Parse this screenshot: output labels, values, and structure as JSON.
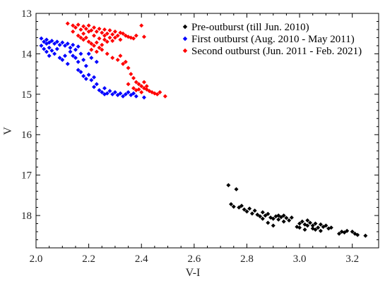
{
  "chart_data": {
    "type": "scatter",
    "title": "",
    "xlabel": "V-I",
    "ylabel": "V",
    "xlim": [
      2.0,
      3.3
    ],
    "ylim": [
      13.0,
      18.8
    ],
    "y_inverted": true,
    "x_ticks": [
      "2.0",
      "2.2",
      "2.4",
      "2.6",
      "2.8",
      "3.0",
      "3.2"
    ],
    "y_ticks": [
      "13",
      "14",
      "15",
      "16",
      "17",
      "18"
    ],
    "grid": false,
    "legend_position": "top-right",
    "series": [
      {
        "name": "Pre-outburst (till Jun. 2010)",
        "color": "#000000",
        "points": [
          [
            2.73,
            17.25
          ],
          [
            2.76,
            17.35
          ],
          [
            2.74,
            17.72
          ],
          [
            2.75,
            17.78
          ],
          [
            2.77,
            17.8
          ],
          [
            2.78,
            17.76
          ],
          [
            2.79,
            17.85
          ],
          [
            2.8,
            17.9
          ],
          [
            2.81,
            17.83
          ],
          [
            2.82,
            17.95
          ],
          [
            2.83,
            17.88
          ],
          [
            2.84,
            17.98
          ],
          [
            2.85,
            18.02
          ],
          [
            2.86,
            17.92
          ],
          [
            2.87,
            18.0
          ],
          [
            2.88,
            17.96
          ],
          [
            2.89,
            18.05
          ],
          [
            2.9,
            18.08
          ],
          [
            2.91,
            18.02
          ],
          [
            2.92,
            18.1
          ],
          [
            2.93,
            18.04
          ],
          [
            2.94,
            18.15
          ],
          [
            2.95,
            18.06
          ],
          [
            2.96,
            18.12
          ],
          [
            2.88,
            18.18
          ],
          [
            2.9,
            18.25
          ],
          [
            2.92,
            18.0
          ],
          [
            2.94,
            18.0
          ],
          [
            2.86,
            18.08
          ],
          [
            2.97,
            18.05
          ],
          [
            2.99,
            18.28
          ],
          [
            3.0,
            18.2
          ],
          [
            3.01,
            18.15
          ],
          [
            3.02,
            18.22
          ],
          [
            3.03,
            18.12
          ],
          [
            3.04,
            18.18
          ],
          [
            3.05,
            18.25
          ],
          [
            3.06,
            18.2
          ],
          [
            3.07,
            18.3
          ],
          [
            3.08,
            18.22
          ],
          [
            3.09,
            18.28
          ],
          [
            3.1,
            18.25
          ],
          [
            3.11,
            18.32
          ],
          [
            3.12,
            18.3
          ],
          [
            3.02,
            18.35
          ],
          [
            3.05,
            18.32
          ],
          [
            3.08,
            18.38
          ],
          [
            3.15,
            18.45
          ],
          [
            3.17,
            18.42
          ],
          [
            3.18,
            18.38
          ],
          [
            3.2,
            18.4
          ],
          [
            3.21,
            18.45
          ],
          [
            3.22,
            18.48
          ],
          [
            3.25,
            18.5
          ],
          [
            3.16,
            18.4
          ],
          [
            3.0,
            18.3
          ],
          [
            3.03,
            18.25
          ],
          [
            3.06,
            18.35
          ]
        ]
      },
      {
        "name": "First outburst (Aug. 2010 - May 2011)",
        "color": "#0000ff",
        "points": [
          [
            2.02,
            13.62
          ],
          [
            2.03,
            13.7
          ],
          [
            2.04,
            13.65
          ],
          [
            2.05,
            13.72
          ],
          [
            2.06,
            13.68
          ],
          [
            2.07,
            13.75
          ],
          [
            2.08,
            13.7
          ],
          [
            2.09,
            13.78
          ],
          [
            2.1,
            13.72
          ],
          [
            2.11,
            13.8
          ],
          [
            2.12,
            13.75
          ],
          [
            2.13,
            13.85
          ],
          [
            2.14,
            13.78
          ],
          [
            2.15,
            13.9
          ],
          [
            2.16,
            13.82
          ],
          [
            2.02,
            13.8
          ],
          [
            2.03,
            13.88
          ],
          [
            2.04,
            13.95
          ],
          [
            2.05,
            13.85
          ],
          [
            2.06,
            13.92
          ],
          [
            2.07,
            14.0
          ],
          [
            2.08,
            13.88
          ],
          [
            2.05,
            14.05
          ],
          [
            2.04,
            13.75
          ],
          [
            2.1,
            14.15
          ],
          [
            2.12,
            14.25
          ],
          [
            2.14,
            14.05
          ],
          [
            2.15,
            14.1
          ],
          [
            2.16,
            14.2
          ],
          [
            2.17,
            14.0
          ],
          [
            2.18,
            14.15
          ],
          [
            2.19,
            14.3
          ],
          [
            2.17,
            14.45
          ],
          [
            2.18,
            14.55
          ],
          [
            2.19,
            14.62
          ],
          [
            2.2,
            14.52
          ],
          [
            2.21,
            14.65
          ],
          [
            2.22,
            14.58
          ],
          [
            2.23,
            14.75
          ],
          [
            2.22,
            14.82
          ],
          [
            2.24,
            14.9
          ],
          [
            2.25,
            14.95
          ],
          [
            2.26,
            14.85
          ],
          [
            2.27,
            14.98
          ],
          [
            2.28,
            14.92
          ],
          [
            2.29,
            15.0
          ],
          [
            2.3,
            14.95
          ],
          [
            2.31,
            15.02
          ],
          [
            2.32,
            14.98
          ],
          [
            2.33,
            15.05
          ],
          [
            2.34,
            15.0
          ],
          [
            2.35,
            14.95
          ],
          [
            2.36,
            15.02
          ],
          [
            2.37,
            14.98
          ],
          [
            2.38,
            15.05
          ],
          [
            2.41,
            15.08
          ],
          [
            2.2,
            14.0
          ],
          [
            2.21,
            14.1
          ],
          [
            2.23,
            14.2
          ],
          [
            2.13,
            13.95
          ],
          [
            2.09,
            14.1
          ],
          [
            2.11,
            14.05
          ],
          [
            2.16,
            14.4
          ],
          [
            2.26,
            15.0
          ]
        ]
      },
      {
        "name": "Second outburst (Jun. 2011 - Feb. 2021)",
        "color": "#ff0000",
        "points": [
          [
            2.12,
            13.25
          ],
          [
            2.14,
            13.3
          ],
          [
            2.15,
            13.35
          ],
          [
            2.16,
            13.28
          ],
          [
            2.17,
            13.4
          ],
          [
            2.18,
            13.32
          ],
          [
            2.19,
            13.38
          ],
          [
            2.2,
            13.3
          ],
          [
            2.21,
            13.42
          ],
          [
            2.22,
            13.35
          ],
          [
            2.23,
            13.45
          ],
          [
            2.24,
            13.38
          ],
          [
            2.25,
            13.48
          ],
          [
            2.26,
            13.4
          ],
          [
            2.27,
            13.5
          ],
          [
            2.28,
            13.42
          ],
          [
            2.29,
            13.52
          ],
          [
            2.3,
            13.45
          ],
          [
            2.31,
            13.55
          ],
          [
            2.32,
            13.48
          ],
          [
            2.33,
            13.5
          ],
          [
            2.34,
            13.55
          ],
          [
            2.35,
            13.58
          ],
          [
            2.36,
            13.6
          ],
          [
            2.37,
            13.62
          ],
          [
            2.38,
            13.55
          ],
          [
            2.4,
            13.3
          ],
          [
            2.41,
            13.58
          ],
          [
            2.18,
            13.5
          ],
          [
            2.19,
            13.6
          ],
          [
            2.2,
            13.7
          ],
          [
            2.21,
            13.75
          ],
          [
            2.22,
            13.8
          ],
          [
            2.23,
            13.72
          ],
          [
            2.24,
            13.85
          ],
          [
            2.25,
            13.78
          ],
          [
            2.26,
            13.65
          ],
          [
            2.27,
            13.7
          ],
          [
            2.28,
            13.6
          ],
          [
            2.29,
            13.68
          ],
          [
            2.17,
            13.6
          ],
          [
            2.18,
            13.65
          ],
          [
            2.22,
            13.55
          ],
          [
            2.24,
            13.62
          ],
          [
            2.26,
            13.55
          ],
          [
            2.3,
            13.6
          ],
          [
            2.32,
            13.65
          ],
          [
            2.2,
            13.45
          ],
          [
            2.14,
            13.45
          ],
          [
            2.16,
            13.55
          ],
          [
            2.25,
            13.9
          ],
          [
            2.27,
            14.0
          ],
          [
            2.29,
            14.1
          ],
          [
            2.31,
            14.15
          ],
          [
            2.33,
            14.25
          ],
          [
            2.35,
            14.35
          ],
          [
            2.36,
            14.5
          ],
          [
            2.37,
            14.6
          ],
          [
            2.38,
            14.7
          ],
          [
            2.39,
            14.75
          ],
          [
            2.4,
            14.8
          ],
          [
            2.41,
            14.85
          ],
          [
            2.42,
            14.88
          ],
          [
            2.43,
            14.92
          ],
          [
            2.44,
            14.95
          ],
          [
            2.45,
            14.98
          ],
          [
            2.46,
            15.0
          ],
          [
            2.47,
            14.95
          ],
          [
            2.49,
            15.05
          ],
          [
            2.39,
            14.88
          ],
          [
            2.4,
            14.95
          ],
          [
            2.42,
            14.8
          ],
          [
            2.35,
            14.75
          ],
          [
            2.37,
            14.85
          ],
          [
            2.41,
            14.7
          ],
          [
            2.38,
            14.9
          ],
          [
            2.34,
            14.2
          ],
          [
            2.32,
            14.05
          ],
          [
            2.21,
            13.9
          ],
          [
            2.23,
            13.95
          ]
        ]
      }
    ]
  }
}
